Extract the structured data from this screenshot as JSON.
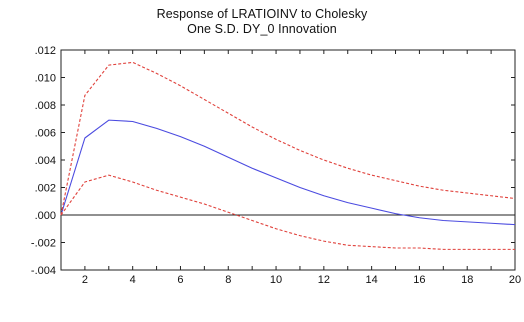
{
  "chart_data": {
    "type": "line",
    "title": "Response of LRATIOINV to Cholesky",
    "subtitle": "One S.D. DY_0 Innovation",
    "xlabel": "",
    "ylabel": "",
    "x": [
      1,
      2,
      3,
      4,
      5,
      6,
      7,
      8,
      9,
      10,
      11,
      12,
      13,
      14,
      15,
      16,
      17,
      18,
      19,
      20
    ],
    "xlim": [
      1,
      20
    ],
    "ylim": [
      -0.004,
      0.012
    ],
    "x_ticks": [
      "2",
      "4",
      "6",
      "8",
      "10",
      "12",
      "14",
      "16",
      "18",
      "20"
    ],
    "y_ticks": [
      ".012",
      ".010",
      ".008",
      ".006",
      ".004",
      ".002",
      ".000",
      "-.002",
      "-.004"
    ],
    "grid": false,
    "zero_line": true,
    "series": [
      {
        "role": "response",
        "color": "#4b4be0",
        "style": "solid",
        "values": [
          0.0,
          0.0056,
          0.0069,
          0.0068,
          0.0063,
          0.0057,
          0.005,
          0.0042,
          0.0034,
          0.0027,
          0.002,
          0.0014,
          0.0009,
          0.0005,
          0.0001,
          -0.0002,
          -0.0004,
          -0.0005,
          -0.0006,
          -0.0007
        ]
      },
      {
        "role": "upper band",
        "color": "#e0413b",
        "style": "dashed",
        "values": [
          0.0,
          0.0087,
          0.0109,
          0.0111,
          0.0103,
          0.0094,
          0.0084,
          0.0074,
          0.0064,
          0.0055,
          0.0047,
          0.004,
          0.0034,
          0.0029,
          0.0025,
          0.0021,
          0.0018,
          0.0016,
          0.0014,
          0.0012
        ]
      },
      {
        "role": "lower band",
        "color": "#e0413b",
        "style": "dashed",
        "values": [
          0.0,
          0.0024,
          0.0029,
          0.0024,
          0.0018,
          0.0013,
          0.0008,
          0.0002,
          -0.0004,
          -0.001,
          -0.0015,
          -0.0019,
          -0.0022,
          -0.0023,
          -0.0024,
          -0.0024,
          -0.0025,
          -0.0025,
          -0.0025,
          -0.0025
        ]
      }
    ]
  }
}
